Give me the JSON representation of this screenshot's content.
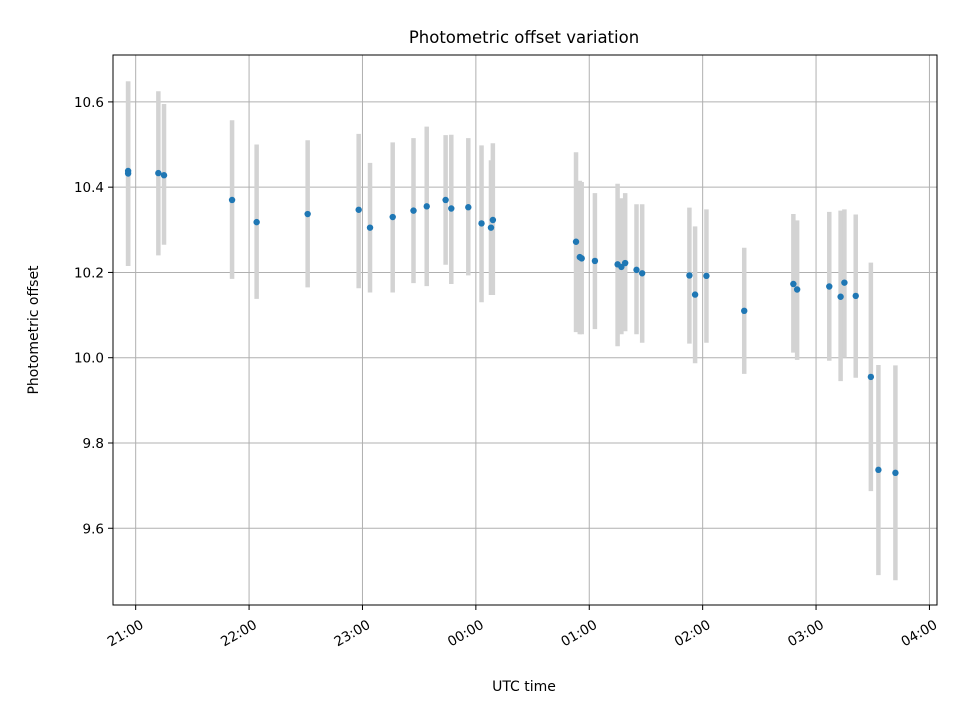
{
  "chart_data": {
    "type": "scatter",
    "title": "Photometric offset variation",
    "xlabel": "UTC time",
    "ylabel": "Photometric offset",
    "xlim": [
      "20:48",
      "04:04"
    ],
    "ylim": [
      9.42,
      10.71
    ],
    "x_ticks": [
      "21:00",
      "22:00",
      "23:00",
      "00:00",
      "01:00",
      "02:00",
      "03:00",
      "04:00"
    ],
    "y_ticks": [
      9.6,
      9.8,
      10.0,
      10.2,
      10.4,
      10.6
    ],
    "grid": true,
    "colors": {
      "point": "#1f77b4",
      "errorbar": "#d3d3d3"
    },
    "points": [
      {
        "x": "20:56",
        "y": 10.432,
        "ylo": 10.215,
        "yhi": 10.648
      },
      {
        "x": "20:56",
        "y": 10.438,
        "ylo": 10.215,
        "yhi": 10.648
      },
      {
        "x": "21:12",
        "y": 10.433,
        "ylo": 10.24,
        "yhi": 10.625
      },
      {
        "x": "21:15",
        "y": 10.428,
        "ylo": 10.265,
        "yhi": 10.595
      },
      {
        "x": "21:51",
        "y": 10.37,
        "ylo": 10.185,
        "yhi": 10.557
      },
      {
        "x": "22:04",
        "y": 10.318,
        "ylo": 10.138,
        "yhi": 10.5
      },
      {
        "x": "22:31",
        "y": 10.337,
        "ylo": 10.165,
        "yhi": 10.51
      },
      {
        "x": "22:58",
        "y": 10.347,
        "ylo": 10.163,
        "yhi": 10.525
      },
      {
        "x": "23:04",
        "y": 10.305,
        "ylo": 10.153,
        "yhi": 10.457
      },
      {
        "x": "23:16",
        "y": 10.33,
        "ylo": 10.153,
        "yhi": 10.505
      },
      {
        "x": "23:27",
        "y": 10.345,
        "ylo": 10.175,
        "yhi": 10.515
      },
      {
        "x": "23:34",
        "y": 10.355,
        "ylo": 10.168,
        "yhi": 10.542
      },
      {
        "x": "23:44",
        "y": 10.37,
        "ylo": 10.218,
        "yhi": 10.522
      },
      {
        "x": "23:47",
        "y": 10.35,
        "ylo": 10.173,
        "yhi": 10.523
      },
      {
        "x": "23:56",
        "y": 10.353,
        "ylo": 10.193,
        "yhi": 10.515
      },
      {
        "x": "00:03",
        "y": 10.315,
        "ylo": 10.13,
        "yhi": 10.498
      },
      {
        "x": "00:08",
        "y": 10.305,
        "ylo": 10.147,
        "yhi": 10.463
      },
      {
        "x": "00:09",
        "y": 10.323,
        "ylo": 10.147,
        "yhi": 10.503
      },
      {
        "x": "00:53",
        "y": 10.272,
        "ylo": 10.06,
        "yhi": 10.482
      },
      {
        "x": "00:55",
        "y": 10.236,
        "ylo": 10.055,
        "yhi": 10.415
      },
      {
        "x": "00:56",
        "y": 10.233,
        "ylo": 10.055,
        "yhi": 10.412
      },
      {
        "x": "01:03",
        "y": 10.227,
        "ylo": 10.067,
        "yhi": 10.386
      },
      {
        "x": "01:15",
        "y": 10.219,
        "ylo": 10.027,
        "yhi": 10.408
      },
      {
        "x": "01:17",
        "y": 10.213,
        "ylo": 10.055,
        "yhi": 10.374
      },
      {
        "x": "01:19",
        "y": 10.222,
        "ylo": 10.062,
        "yhi": 10.386
      },
      {
        "x": "01:25",
        "y": 10.206,
        "ylo": 10.055,
        "yhi": 10.36
      },
      {
        "x": "01:28",
        "y": 10.198,
        "ylo": 10.035,
        "yhi": 10.36
      },
      {
        "x": "01:53",
        "y": 10.193,
        "ylo": 10.033,
        "yhi": 10.352
      },
      {
        "x": "01:56",
        "y": 10.148,
        "ylo": 9.987,
        "yhi": 10.308
      },
      {
        "x": "02:02",
        "y": 10.192,
        "ylo": 10.035,
        "yhi": 10.348
      },
      {
        "x": "02:22",
        "y": 10.11,
        "ylo": 9.962,
        "yhi": 10.258
      },
      {
        "x": "02:48",
        "y": 10.173,
        "ylo": 10.012,
        "yhi": 10.337
      },
      {
        "x": "02:50",
        "y": 10.16,
        "ylo": 9.995,
        "yhi": 10.322
      },
      {
        "x": "03:07",
        "y": 10.167,
        "ylo": 9.993,
        "yhi": 10.342
      },
      {
        "x": "03:13",
        "y": 10.143,
        "ylo": 9.945,
        "yhi": 10.345
      },
      {
        "x": "03:15",
        "y": 10.176,
        "ylo": 10.0,
        "yhi": 10.348
      },
      {
        "x": "03:21",
        "y": 10.145,
        "ylo": 9.953,
        "yhi": 10.336
      },
      {
        "x": "03:29",
        "y": 9.955,
        "ylo": 9.687,
        "yhi": 10.223
      },
      {
        "x": "03:33",
        "y": 9.737,
        "ylo": 9.49,
        "yhi": 9.983
      },
      {
        "x": "03:42",
        "y": 9.73,
        "ylo": 9.478,
        "yhi": 9.982
      }
    ]
  }
}
